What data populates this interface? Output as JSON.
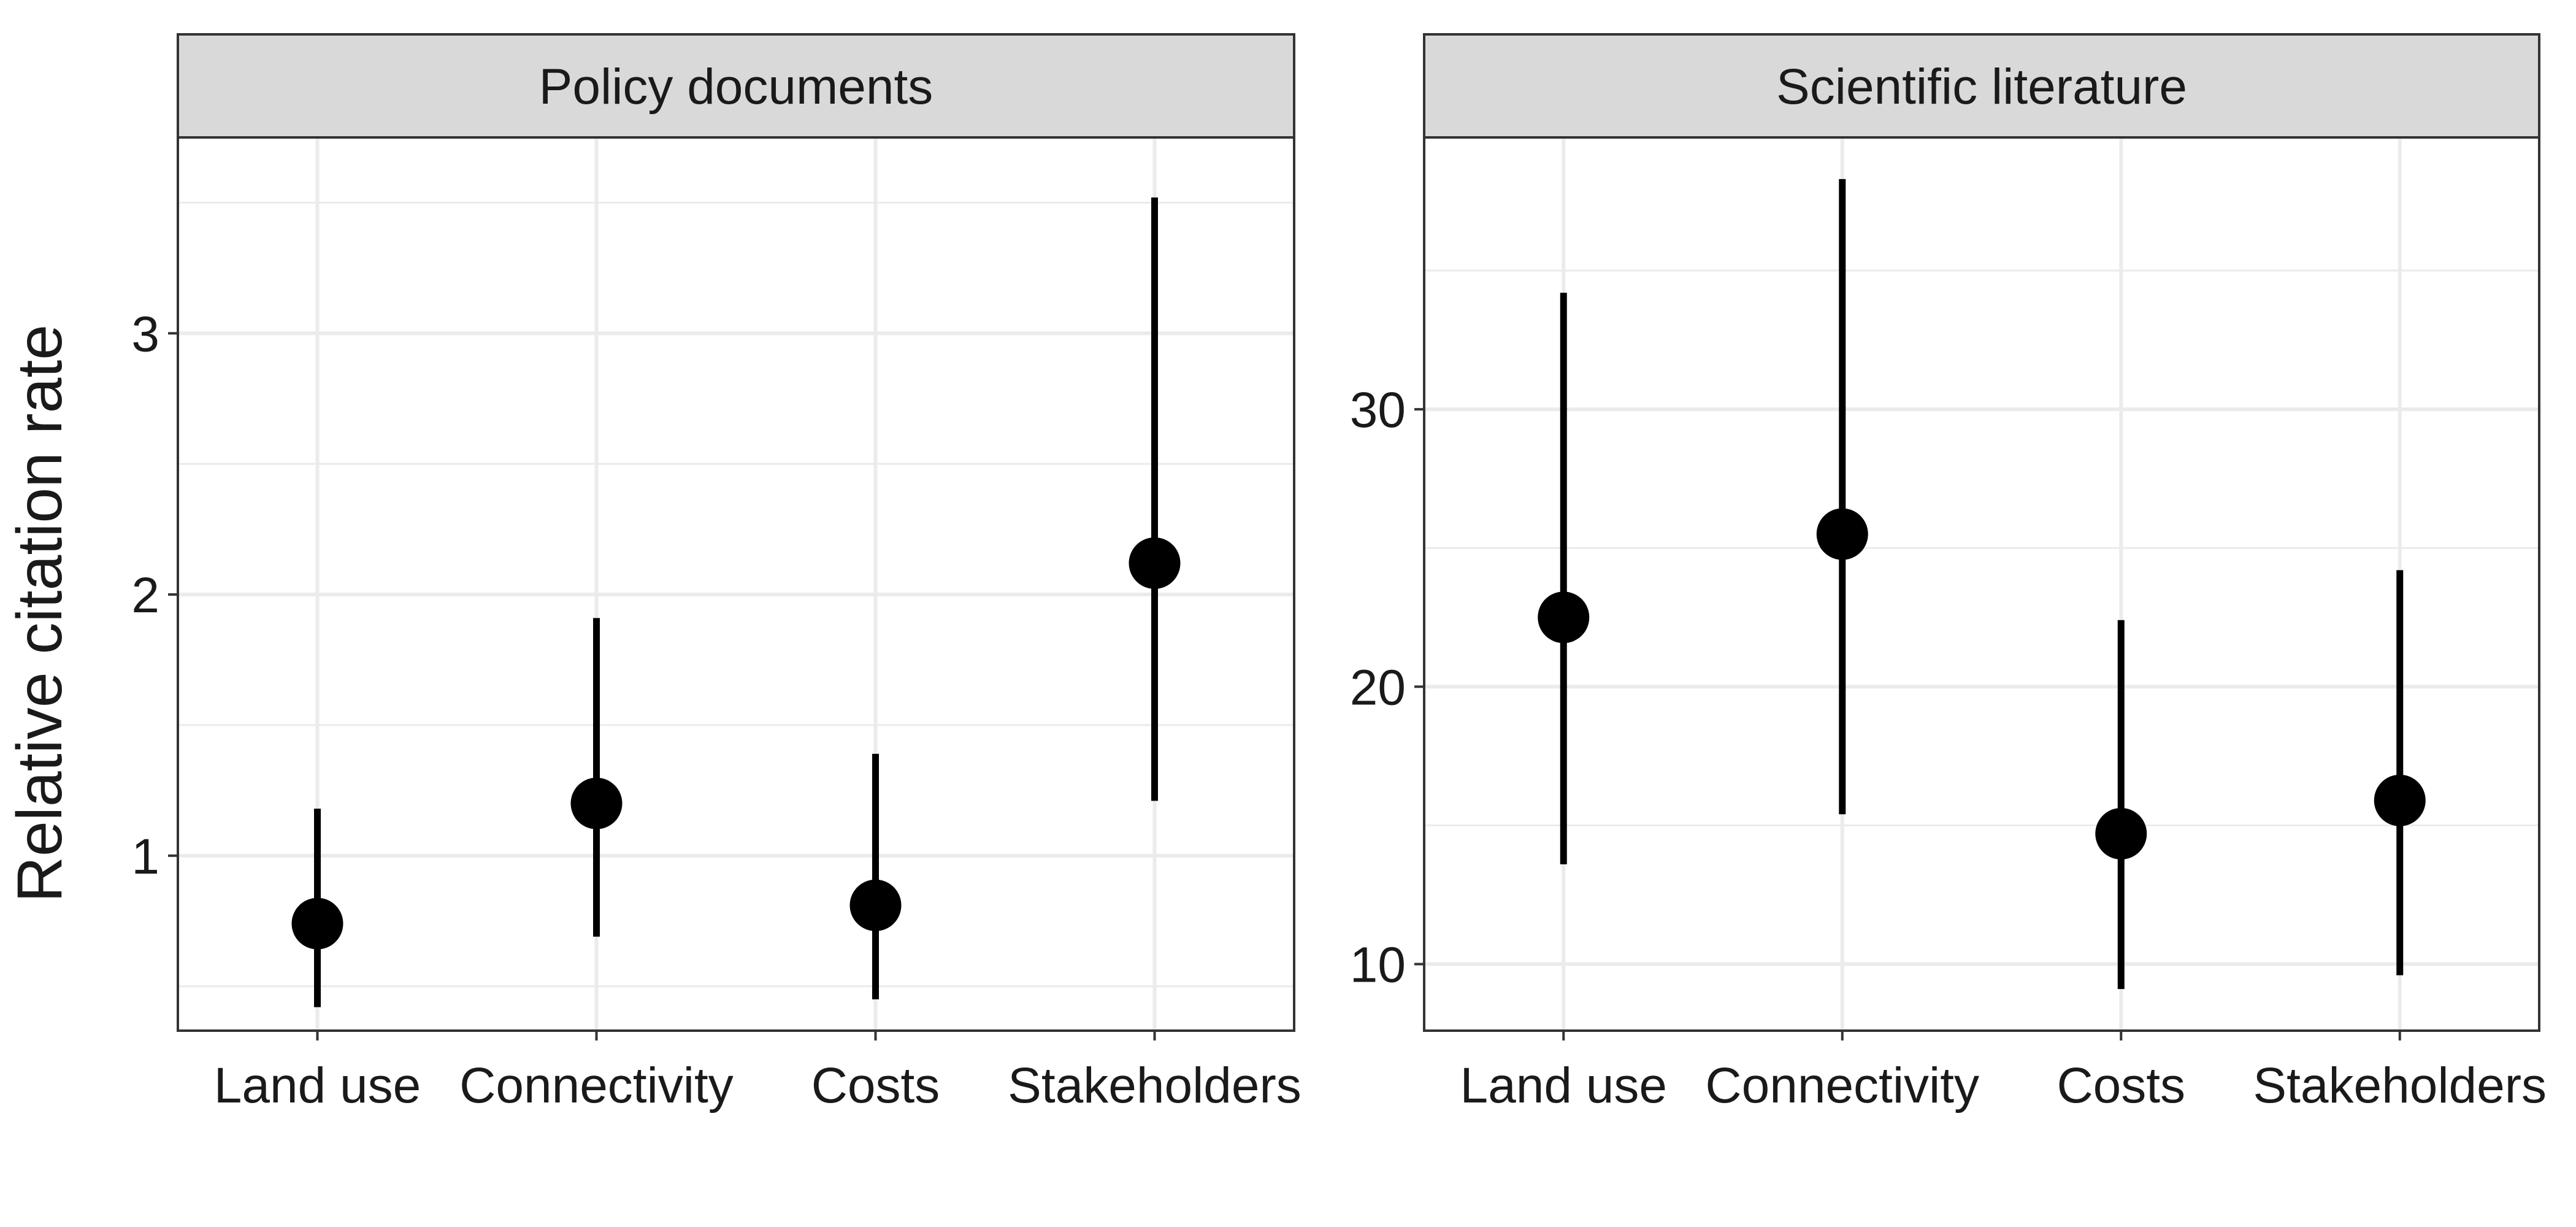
{
  "chart_data": {
    "type": "pointrange",
    "ylabel": "Relative citation rate",
    "xlabel": "",
    "grid": true,
    "colors": {
      "strip_fill": "#d9d9d9",
      "marks": "#000000",
      "grid": "#ebebeb",
      "panel_border": "#333333"
    },
    "panels": [
      {
        "title": "Policy documents",
        "categories": [
          "Land use",
          "Connectivity",
          "Costs",
          "Stakeholders"
        ],
        "estimate": [
          0.74,
          1.2,
          0.81,
          2.12
        ],
        "lower": [
          0.42,
          0.69,
          0.45,
          1.21
        ],
        "upper": [
          1.18,
          1.91,
          1.39,
          3.52
        ],
        "ylim": [
          0.33,
          3.75
        ],
        "yticks": [
          1,
          2,
          3
        ],
        "yminor": [
          0.5,
          1.5,
          2.5,
          3.5
        ]
      },
      {
        "title": "Scientific literature",
        "categories": [
          "Land use",
          "Connectivity",
          "Costs",
          "Stakeholders"
        ],
        "estimate": [
          22.5,
          25.5,
          14.7,
          15.9
        ],
        "lower": [
          13.6,
          15.4,
          9.1,
          9.6
        ],
        "upper": [
          34.2,
          38.3,
          22.4,
          24.2
        ],
        "ylim": [
          7.6,
          39.8
        ],
        "yticks": [
          10,
          20,
          30
        ],
        "yminor": [
          15,
          25,
          35
        ]
      }
    ]
  }
}
